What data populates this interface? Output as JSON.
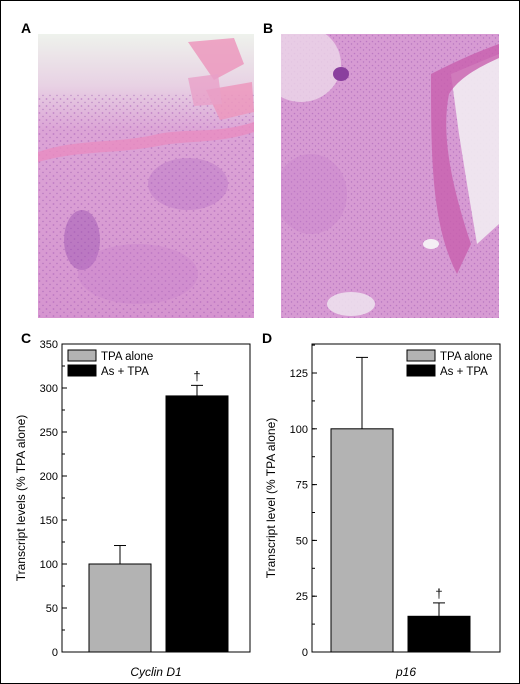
{
  "panels": {
    "A": {
      "letter": "A"
    },
    "B": {
      "letter": "B"
    },
    "C": {
      "letter": "C"
    },
    "D": {
      "letter": "D"
    }
  },
  "colors": {
    "tissue_base": "#dd9ed6",
    "tissue_dark": "#b96cc4",
    "tissue_pink": "#ec98bd",
    "background_pale": "#eef2ec",
    "tpa_alone_bar": "#b3b3b3",
    "as_tpa_bar": "#000000"
  },
  "chart_data": [
    {
      "type": "bar",
      "categories": [
        "Cyclin D1"
      ],
      "xlabel": "Cyclin D1",
      "ylabel": "Transcript levels (% TPA alone)",
      "ylim": [
        0,
        350
      ],
      "yticks": [
        0,
        50,
        100,
        150,
        200,
        250,
        300,
        350
      ],
      "legend_position": "top-left",
      "series": [
        {
          "name": "TPA alone",
          "values": [
            100
          ],
          "error": [
            21
          ],
          "color": "#b3b3b3",
          "marker": ""
        },
        {
          "name": "As + TPA",
          "values": [
            291
          ],
          "error": [
            12
          ],
          "color": "#000000",
          "marker": "†"
        }
      ]
    },
    {
      "type": "bar",
      "categories": [
        "p16"
      ],
      "xlabel": "p16",
      "ylabel": "Transcript level (% TPA alone)",
      "ylim": [
        0,
        138
      ],
      "yticks": [
        0,
        25,
        50,
        75,
        100,
        125
      ],
      "legend_position": "top-right",
      "series": [
        {
          "name": "TPA alone",
          "values": [
            100
          ],
          "error": [
            32
          ],
          "color": "#b3b3b3",
          "marker": ""
        },
        {
          "name": "As + TPA",
          "values": [
            16
          ],
          "error": [
            6
          ],
          "color": "#000000",
          "marker": "†"
        }
      ]
    }
  ]
}
